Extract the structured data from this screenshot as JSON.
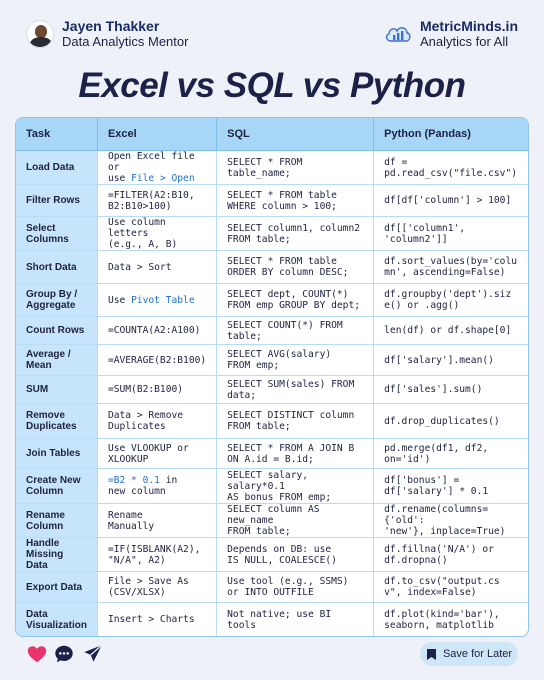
{
  "header": {
    "author_name": "Jayen Thakker",
    "author_role": "Data Analytics Mentor",
    "brand_name": "MetricMinds.in",
    "brand_tagline": "Analytics for All"
  },
  "title": "Excel vs SQL vs Python",
  "table": {
    "headers": [
      "Task",
      "Excel",
      "SQL",
      "Python (Pandas)"
    ],
    "rows": [
      {
        "task": "Load Data",
        "excel": [
          {
            "t": "Open Excel file or\nuse "
          },
          {
            "t": "File > Open",
            "hl": true
          }
        ],
        "sql": "SELECT * FROM\ntable_name;",
        "python": "df =\npd.read_csv(\"file.csv\")"
      },
      {
        "task": "Filter Rows",
        "excel": [
          {
            "t": "=FILTER(A2:B10,\nB2:B10>100)"
          }
        ],
        "sql": "SELECT * FROM table\nWHERE column > 100;",
        "python": "df[df['column'] > 100]"
      },
      {
        "task": "Select Columns",
        "excel": [
          {
            "t": "Use column letters\n(e.g., A, B)"
          }
        ],
        "sql": "SELECT column1, column2\nFROM table;",
        "python": "df[['column1',\n'column2']]"
      },
      {
        "task": "Short Data",
        "excel": [
          {
            "t": "Data > Sort"
          }
        ],
        "sql": "SELECT * FROM table\nORDER BY column DESC;",
        "python": "df.sort_values(by='colu\nmn', ascending=False)"
      },
      {
        "task": "Group By /\nAggregate",
        "excel": [
          {
            "t": "Use "
          },
          {
            "t": "Pivot Table",
            "hl": true
          }
        ],
        "sql": "SELECT dept, COUNT(*)\nFROM emp GROUP BY dept;",
        "python": "df.groupby('dept').siz\ne() or .agg()"
      },
      {
        "task": "Count Rows",
        "excel": [
          {
            "t": "=COUNTA(A2:A100)"
          }
        ],
        "sql": "SELECT COUNT(*) FROM table;",
        "python": "len(df) or df.shape[0]"
      },
      {
        "task": "Average / Mean",
        "excel": [
          {
            "t": "=AVERAGE(B2:B100)"
          }
        ],
        "sql": "SELECT AVG(salary)\nFROM emp;",
        "python": "df['salary'].mean()"
      },
      {
        "task": "SUM",
        "excel": [
          {
            "t": "=SUM(B2:B100)"
          }
        ],
        "sql": "SELECT SUM(sales) FROM\ndata;",
        "python": "df['sales'].sum()"
      },
      {
        "task": "Remove\nDuplicates",
        "excel": [
          {
            "t": "Data > Remove\nDuplicates"
          }
        ],
        "sql": "SELECT DISTINCT column\nFROM table;",
        "python": "df.drop_duplicates()"
      },
      {
        "task": "Join Tables",
        "excel": [
          {
            "t": "Use VLOOKUP or\nXLOOKUP"
          }
        ],
        "sql": "SELECT * FROM A JOIN B\nON A.id = B.id;",
        "python": "pd.merge(df1, df2,\non='id')"
      },
      {
        "task": "Create New\nColumn",
        "excel": [
          {
            "t": "=B2 * 0.1",
            "hl": true
          },
          {
            "t": " in\nnew column"
          }
        ],
        "sql": "SELECT salary, salary*0.1\nAS bonus FROM emp;",
        "python": "df['bonus'] =\ndf['salary'] * 0.1"
      },
      {
        "task": "Rename\nColumn",
        "excel": [
          {
            "t": "Rename\nManually"
          }
        ],
        "sql": "SELECT column AS new_name\nFROM table;",
        "python": "df.rename(columns={'old':\n'new'}, inplace=True)"
      },
      {
        "task": "Handle\nMissing Data",
        "excel": [
          {
            "t": "=IF(ISBLANK(A2),\n\"N/A\", A2)"
          }
        ],
        "sql": "Depends on DB: use\nIS NULL, COALESCE()",
        "python": "df.fillna('N/A') or\ndf.dropna()"
      },
      {
        "task": "Export Data",
        "excel": [
          {
            "t": "File > Save As\n(CSV/XLSX)"
          }
        ],
        "sql": "Use tool (e.g., SSMS)\nor INTO OUTFILE",
        "python": "df.to_csv(\"output.cs\nv\", index=False)"
      },
      {
        "task": "Data\nVisualization",
        "excel": [
          {
            "t": "Insert > Charts"
          }
        ],
        "sql": "Not native; use BI\ntools",
        "python": "df.plot(kind='bar'),\nseaborn, matplotlib"
      }
    ]
  },
  "footer": {
    "save_label": "Save for Later",
    "icons": [
      "heart-icon",
      "comment-icon",
      "send-icon",
      "bookmark-icon"
    ]
  },
  "colors": {
    "header_bg": "#a7d6f7",
    "task_bg": "#c6e4fa",
    "highlight": "#1f6fd1",
    "heart": "#e8336d",
    "title": "#1c2148"
  }
}
